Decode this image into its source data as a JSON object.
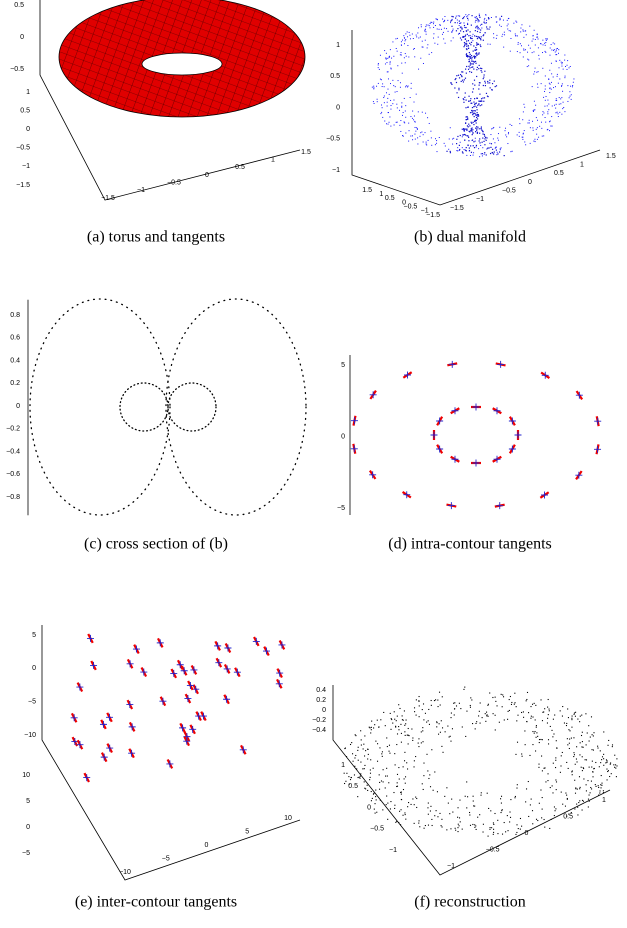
{
  "figure": {
    "panels": [
      {
        "caption": "(a) torus and tangents",
        "axes": [
          [
            "0.5",
            "0",
            "−0.5"
          ],
          [
            "1",
            "0.5",
            "0",
            "−0.5",
            "−1",
            "−1.5"
          ],
          [
            "−1.5",
            "−1",
            "−0.5",
            "0",
            "0.5",
            "1",
            "1.5"
          ]
        ]
      },
      {
        "caption": "(b) dual manifold",
        "axes": [
          [
            "1",
            "0.5",
            "0",
            "−0.5",
            "−1"
          ],
          [
            "1.5",
            "1",
            "0.5",
            "0",
            "−0.5",
            "−1",
            "−1.5"
          ],
          [
            "−1.5",
            "−1",
            "−0.5",
            "0",
            "0.5",
            "1",
            "1.5"
          ]
        ]
      },
      {
        "caption": "(c) cross section of (b)",
        "axes": [
          [
            "0.8",
            "0.6",
            "0.4",
            "0.2",
            "0",
            "−0.2",
            "−0.4",
            "−0.6",
            "−0.8"
          ]
        ]
      },
      {
        "caption": "(d) intra-contour tangents",
        "axes": [
          [
            "5",
            "0",
            "−5"
          ]
        ]
      },
      {
        "caption": "(e) inter-contour tangents",
        "axes": [
          [
            "5",
            "0",
            "−5",
            "−10"
          ],
          [
            "10",
            "5",
            "0",
            "−5"
          ],
          [
            "−10",
            "−5",
            "0",
            "5",
            "10"
          ]
        ]
      },
      {
        "caption": "(f) reconstruction",
        "axes": [
          [
            "0.4",
            "0.2",
            "0",
            "−0.2",
            "−0.4"
          ],
          [
            "1",
            "0.5",
            "0",
            "−0.5",
            "−1"
          ],
          [
            "−1",
            "−0.5",
            "0",
            "0.5",
            "1"
          ]
        ]
      }
    ]
  }
}
